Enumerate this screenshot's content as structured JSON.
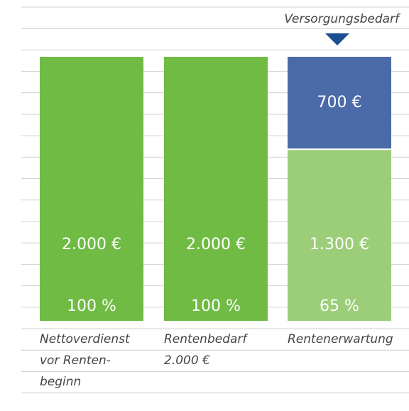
{
  "chart_data": {
    "type": "stacked_bar",
    "annotation": "Versorgungsbedarf",
    "categories": [
      [
        "Nettoverdienst",
        "vor Renten-",
        "beginn"
      ],
      [
        "Rentenbedarf",
        "2.000 €"
      ],
      [
        "Rentenerwartung"
      ]
    ],
    "series": [
      {
        "colors": [
          "#6fbb44",
          "#6fbb44",
          "#9ccd78"
        ],
        "values": [
          2000,
          2000,
          1300
        ],
        "value_labels": [
          "2.000 €",
          "2.000 €",
          "1.300 €"
        ],
        "percent_labels": [
          "100 %",
          "100 %",
          "65 %"
        ]
      },
      {
        "colors": [
          null,
          null,
          "#4a6aa8"
        ],
        "values": [
          null,
          null,
          700
        ],
        "value_labels": [
          null,
          null,
          "700 €"
        ]
      }
    ],
    "annotation_color": "#1b4f8f"
  }
}
